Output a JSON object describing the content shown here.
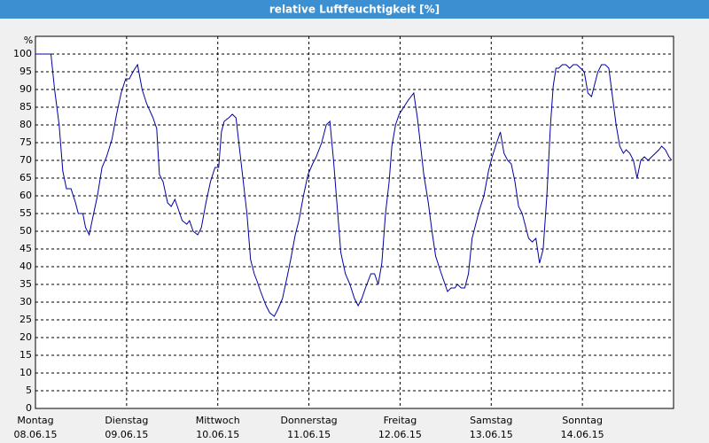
{
  "chart_data": {
    "type": "line",
    "title": "relative Luftfeuchtigkeit [%]",
    "y_unit": "%",
    "x": [
      0,
      0.17,
      0.21,
      0.26,
      0.3,
      0.34,
      0.39,
      0.44,
      0.47,
      0.52,
      0.55,
      0.59,
      0.63,
      0.68,
      0.73,
      0.78,
      0.84,
      0.89,
      0.94,
      0.99,
      1.03,
      1.07,
      1.12,
      1.17,
      1.22,
      1.29,
      1.33,
      1.36,
      1.4,
      1.45,
      1.49,
      1.53,
      1.57,
      1.61,
      1.66,
      1.69,
      1.73,
      1.78,
      1.82,
      1.87,
      1.92,
      1.97,
      2.01,
      2.04,
      2.07,
      2.12,
      2.16,
      2.2,
      2.24,
      2.28,
      2.32,
      2.36,
      2.4,
      2.43,
      2.47,
      2.53,
      2.57,
      2.62,
      2.66,
      2.71,
      2.76,
      2.8,
      2.85,
      2.89,
      2.94,
      2.99,
      3.04,
      3.08,
      3.14,
      3.19,
      3.23,
      3.27,
      3.31,
      3.35,
      3.4,
      3.45,
      3.5,
      3.54,
      3.58,
      3.62,
      3.68,
      3.72,
      3.76,
      3.8,
      3.84,
      3.88,
      3.91,
      3.95,
      3.99,
      4.04,
      4.09,
      4.15,
      4.19,
      4.23,
      4.26,
      4.31,
      4.35,
      4.39,
      4.44,
      4.48,
      4.52,
      4.56,
      4.6,
      4.63,
      4.67,
      4.71,
      4.75,
      4.79,
      4.83,
      4.87,
      4.92,
      4.97,
      5.01,
      5.06,
      5.1,
      5.14,
      5.18,
      5.22,
      5.26,
      5.3,
      5.34,
      5.37,
      5.41,
      5.45,
      5.49,
      5.53,
      5.57,
      5.61,
      5.65,
      5.68,
      5.71,
      5.74,
      5.78,
      5.82,
      5.86,
      5.9,
      5.94,
      5.98,
      6.02,
      6.06,
      6.1,
      6.13,
      6.17,
      6.21,
      6.25,
      6.29,
      6.33,
      6.37,
      6.41,
      6.45,
      6.48,
      6.52,
      6.56,
      6.6,
      6.64,
      6.68,
      6.72,
      6.76,
      6.8,
      6.84,
      6.87,
      6.91,
      6.95,
      6.98
    ],
    "series": [
      {
        "name": "relative Luftfeuchtigkeit",
        "color": "#0000a0",
        "values": [
          100,
          100,
          90,
          80,
          67,
          62,
          62,
          58,
          55,
          55,
          51,
          49,
          54,
          60,
          68,
          71,
          76,
          83,
          89,
          93,
          93,
          95,
          97,
          90,
          86,
          82,
          79,
          66,
          64,
          58,
          57,
          59,
          56,
          53,
          52,
          53,
          50,
          49,
          51,
          58,
          64,
          68,
          68,
          78,
          81,
          82,
          83,
          82,
          73,
          64,
          55,
          42,
          38,
          36,
          33,
          29,
          27,
          26,
          28,
          31,
          37,
          42,
          49,
          53,
          60,
          66,
          69,
          71,
          75,
          80,
          81,
          70,
          57,
          44,
          38,
          35,
          31,
          29,
          31,
          34,
          38,
          38,
          35,
          41,
          55,
          64,
          74,
          80,
          83,
          85,
          87,
          89,
          82,
          73,
          66,
          58,
          50,
          43,
          39,
          36,
          33,
          34,
          34,
          35,
          34,
          34,
          38,
          48,
          52,
          56,
          60,
          67,
          71,
          75,
          78,
          72,
          70,
          69,
          64,
          57,
          55,
          52,
          48,
          47,
          48,
          41,
          45,
          60,
          80,
          91,
          96,
          96,
          97,
          97,
          96,
          97,
          97,
          96,
          95,
          89,
          88,
          91,
          95,
          97,
          97,
          96,
          88,
          80,
          74,
          72,
          73,
          72,
          70,
          65,
          70,
          71,
          70,
          71,
          72,
          73,
          74,
          73,
          71,
          70
        ]
      }
    ],
    "xlim": [
      0,
      7
    ],
    "xticks": [
      {
        "value": 0,
        "label": "Montag"
      },
      {
        "value": 1,
        "label": "Dienstag"
      },
      {
        "value": 2,
        "label": "Mittwoch"
      },
      {
        "value": 3,
        "label": "Donnerstag"
      },
      {
        "value": 4,
        "label": "Freitag"
      },
      {
        "value": 5,
        "label": "Samstag"
      },
      {
        "value": 6,
        "label": "Sonntag"
      }
    ],
    "xtick_dates": [
      "08.06.15",
      "09.06.15",
      "10.06.15",
      "11.06.15",
      "12.06.15",
      "13.06.15",
      "14.06.15"
    ],
    "ylim": [
      0,
      105
    ],
    "yticks": [
      0,
      5,
      10,
      15,
      20,
      25,
      30,
      35,
      40,
      45,
      50,
      55,
      60,
      65,
      70,
      75,
      80,
      85,
      90,
      95,
      100
    ],
    "grid": true
  }
}
